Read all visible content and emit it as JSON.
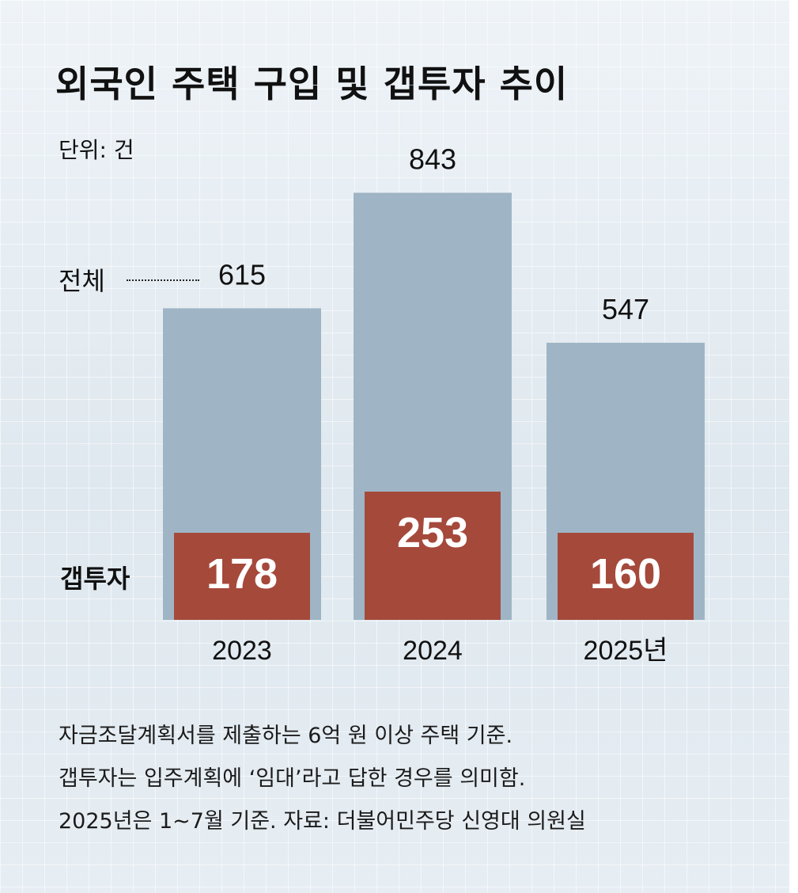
{
  "title": "외국인 주택 구입 및 갭투자 추이",
  "unit": "단위: 건",
  "colors": {
    "total_bar": "#9fb5c5",
    "gap_bar": "#a5493b",
    "gap_label": "#ffffff",
    "text": "#111111"
  },
  "chart_data": {
    "type": "bar",
    "categories": [
      "2023",
      "2024",
      "2025년"
    ],
    "series": [
      {
        "name": "전체",
        "values": [
          615,
          843,
          547
        ]
      },
      {
        "name": "갭투자",
        "values": [
          178,
          253,
          160
        ]
      }
    ],
    "title": "외국인 주택 구입 및 갭투자 추이",
    "unit": "단위: 건",
    "grid": false,
    "legend": "inline-left"
  },
  "footnotes": [
    "자금조달계획서를 제출하는 6억 원 이상 주택 기준.",
    "갭투자는 입주계획에 ‘임대’라고 답한 경우를 의미함.",
    "2025년은 1∼7월 기준. 자료: 더불어민주당 신영대 의원실"
  ]
}
